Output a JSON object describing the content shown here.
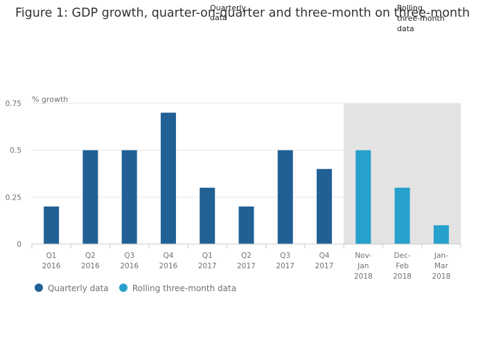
{
  "title": "Figure 1: GDP growth, quarter-on-quarter and three-month on three-month",
  "annotations": {
    "quarterly": [
      "Quarterly",
      "data"
    ],
    "rolling": [
      "Rolling",
      "three-month",
      "data"
    ]
  },
  "legend": {
    "quarterly": "Quarterly data",
    "rolling": "Rolling three-month data"
  },
  "colors": {
    "quarterly": "#206095",
    "rolling": "#27a0cc",
    "shade": "#e3e3e3",
    "grid": "#e6e6e6",
    "axis": "#c8c8c8"
  },
  "chart_data": {
    "type": "bar",
    "title": "Figure 1: GDP growth, quarter-on-quarter and three-month on three-month",
    "ylabel": "% growth",
    "xlabel": "",
    "ylim": [
      0,
      0.75
    ],
    "yticks": [
      "0",
      "0.25",
      "0.5",
      "0.75"
    ],
    "grid": true,
    "legend_position": "bottom-left",
    "categories": [
      [
        "Q1",
        "2016"
      ],
      [
        "Q2",
        "2016"
      ],
      [
        "Q3",
        "2016"
      ],
      [
        "Q4",
        "2016"
      ],
      [
        "Q1",
        "2017"
      ],
      [
        "Q2",
        "2017"
      ],
      [
        "Q3",
        "2017"
      ],
      [
        "Q4",
        "2017"
      ],
      [
        "Nov-",
        "Jan",
        "2018"
      ],
      [
        "Dec-",
        "Feb",
        "2018"
      ],
      [
        "Jan-",
        "Mar",
        "2018"
      ]
    ],
    "series": [
      {
        "name": "Quarterly data",
        "values": [
          0.2,
          0.5,
          0.5,
          0.7,
          0.3,
          0.2,
          0.5,
          0.4,
          null,
          null,
          null
        ]
      },
      {
        "name": "Rolling three-month data",
        "values": [
          null,
          null,
          null,
          null,
          null,
          null,
          null,
          null,
          0.5,
          0.3,
          0.1
        ]
      }
    ]
  }
}
